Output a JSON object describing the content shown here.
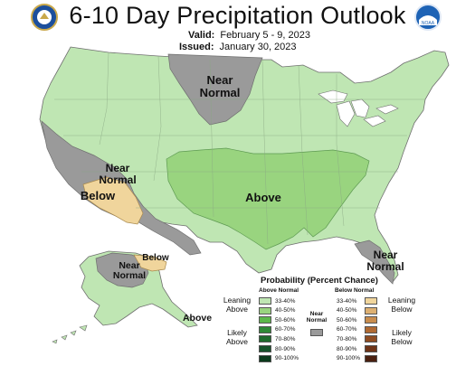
{
  "header": {
    "title": "6-10 Day Precipitation Outlook",
    "valid_label": "Valid:",
    "valid_value": "February 5 - 9, 2023",
    "issued_label": "Issued:",
    "issued_value": "January 30, 2023"
  },
  "logos": {
    "left": "doc-seal-icon",
    "right": "noaa-logo-icon",
    "right_text": "NOAA"
  },
  "map_labels": {
    "near_normal_plains": "Near Normal",
    "near_normal_california": "Near Normal",
    "below_california": "Below",
    "above_south": "Above",
    "near_normal_alaska": "Near Normal",
    "below_alaska": "Below",
    "above_alaska": "Above",
    "near_normal_florida": "Near Normal"
  },
  "legend": {
    "title": "Probability (Percent Chance)",
    "above_header": "Above Normal",
    "below_header": "Below Normal",
    "near_header": "Near Normal",
    "leaning_above": "Leaning Above",
    "likely_above": "Likely Above",
    "leaning_below": "Leaning Below",
    "likely_below": "Likely Below",
    "above_bins": [
      {
        "label": "33-40%",
        "color": "#bfe6b3"
      },
      {
        "label": "40-50%",
        "color": "#99d47f"
      },
      {
        "label": "50-60%",
        "color": "#5cb84a"
      },
      {
        "label": "60-70%",
        "color": "#2f8a36"
      },
      {
        "label": "70-80%",
        "color": "#1e6b2c"
      },
      {
        "label": "80-90%",
        "color": "#16522a"
      },
      {
        "label": "90-100%",
        "color": "#0b3a1c"
      }
    ],
    "below_bins": [
      {
        "label": "33-40%",
        "color": "#f0d59c"
      },
      {
        "label": "40-50%",
        "color": "#ddb072"
      },
      {
        "label": "50-60%",
        "color": "#c98d4e"
      },
      {
        "label": "60-70%",
        "color": "#b06a33"
      },
      {
        "label": "70-80%",
        "color": "#8e4c22"
      },
      {
        "label": "80-90%",
        "color": "#6e3418"
      },
      {
        "label": "90-100%",
        "color": "#4a2010"
      }
    ],
    "near_color": "#9a9a9a"
  },
  "colors": {
    "above_light": "#bfe6b3",
    "above_medium": "#99d47f",
    "near_normal": "#9a9a9a",
    "below_light": "#f0d59c",
    "water": "#ffffff",
    "border": "#7a7a7a"
  }
}
